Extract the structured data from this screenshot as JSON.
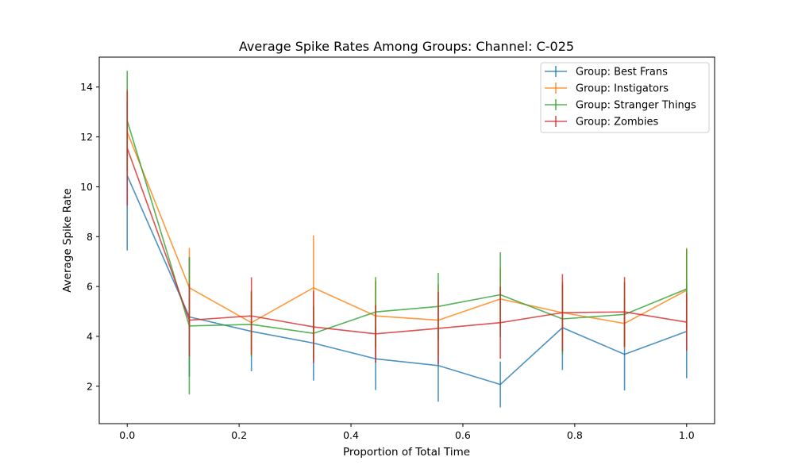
{
  "chart_data": {
    "type": "line",
    "title": "Average Spike Rates Among Groups: Channel: C-025",
    "xlabel": "Proportion of Total Time",
    "ylabel": "Average Spike Rate",
    "xlim": [
      -0.05,
      1.05
    ],
    "ylim": [
      0.5,
      15.2
    ],
    "xticks": [
      0.0,
      0.2,
      0.4,
      0.6,
      0.8,
      1.0
    ],
    "xtick_labels": [
      "0.0",
      "0.2",
      "0.4",
      "0.6",
      "0.8",
      "1.0"
    ],
    "yticks": [
      2,
      4,
      6,
      8,
      10,
      12,
      14
    ],
    "ytick_labels": [
      "2",
      "4",
      "6",
      "8",
      "10",
      "12",
      "14"
    ],
    "grid": false,
    "legend_position": "top-right",
    "x": [
      0.0,
      0.111,
      0.222,
      0.333,
      0.444,
      0.556,
      0.667,
      0.778,
      0.889,
      1.0
    ],
    "series": [
      {
        "name": "Group: Best Frans",
        "color": "#1f77b4",
        "values": [
          10.45,
          4.78,
          4.2,
          3.73,
          3.1,
          2.83,
          2.07,
          4.35,
          3.28,
          4.2
        ],
        "yerr": [
          3.0,
          2.4,
          1.6,
          1.5,
          1.25,
          1.45,
          0.92,
          1.7,
          1.45,
          1.88
        ]
      },
      {
        "name": "Group: Instigators",
        "color": "#ff7f0e",
        "values": [
          12.2,
          5.95,
          4.55,
          5.95,
          4.82,
          4.65,
          5.5,
          4.95,
          4.52,
          5.85
        ],
        "yerr": [
          1.72,
          1.6,
          1.3,
          2.1,
          1.4,
          1.45,
          1.2,
          1.25,
          1.0,
          1.7
        ]
      },
      {
        "name": "Group: Stranger Things",
        "color": "#2ca02c",
        "values": [
          12.65,
          4.42,
          4.48,
          4.12,
          4.98,
          5.2,
          5.67,
          4.7,
          4.88,
          5.9
        ],
        "yerr": [
          2.0,
          2.75,
          1.3,
          1.1,
          1.4,
          1.35,
          1.7,
          1.4,
          1.3,
          1.6
        ]
      },
      {
        "name": "Group: Zombies",
        "color": "#d62728",
        "values": [
          11.55,
          4.65,
          4.82,
          4.38,
          4.1,
          4.32,
          4.55,
          4.95,
          4.98,
          4.57
        ],
        "yerr": [
          2.3,
          1.45,
          1.55,
          1.45,
          1.15,
          1.45,
          1.45,
          1.55,
          1.4,
          1.15
        ]
      }
    ]
  }
}
